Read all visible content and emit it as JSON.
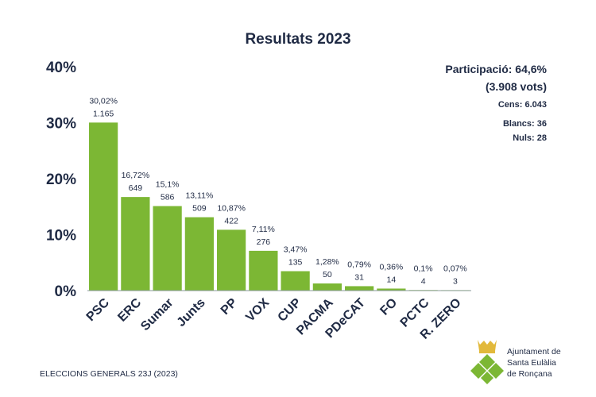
{
  "chart_data": {
    "type": "bar",
    "title": "Resultats 2023",
    "categories": [
      "PSC",
      "ERC",
      "Sumar",
      "Junts",
      "PP",
      "VOX",
      "CUP",
      "PACMA",
      "PDeCAT",
      "FO",
      "PCTC",
      "R. ZERO"
    ],
    "values": [
      30.02,
      16.72,
      15.1,
      13.11,
      10.87,
      7.11,
      3.47,
      1.28,
      0.79,
      0.36,
      0.1,
      0.07
    ],
    "value_labels": [
      "30,02%",
      "16,72%",
      "15,1%",
      "13,11%",
      "10,87%",
      "7,11%",
      "3,47%",
      "1,28%",
      "0,79%",
      "0,36%",
      "0,1%",
      "0,07%"
    ],
    "votes": [
      "1.165",
      "649",
      "586",
      "509",
      "422",
      "276",
      "135",
      "50",
      "31",
      "14",
      "4",
      "3"
    ],
    "yticks": [
      "0%",
      "10%",
      "20%",
      "30%",
      "40%"
    ],
    "ylim": [
      0,
      40
    ],
    "grid": false,
    "bar_color": "#7cb734"
  },
  "info": {
    "participation": "Participació: 64,6%",
    "votes_total": "(3.908 vots)",
    "census": "Cens: 6.043",
    "blank": "Blancs: 36",
    "null": "Nuls: 28"
  },
  "footer": "ELECCIONS GENERALS 23J (2023)",
  "logo": {
    "lines": [
      "Ajuntament de",
      "Santa Eulàlia",
      "de Ronçana"
    ],
    "green": "#7cb734",
    "gold": "#e2b93b"
  }
}
